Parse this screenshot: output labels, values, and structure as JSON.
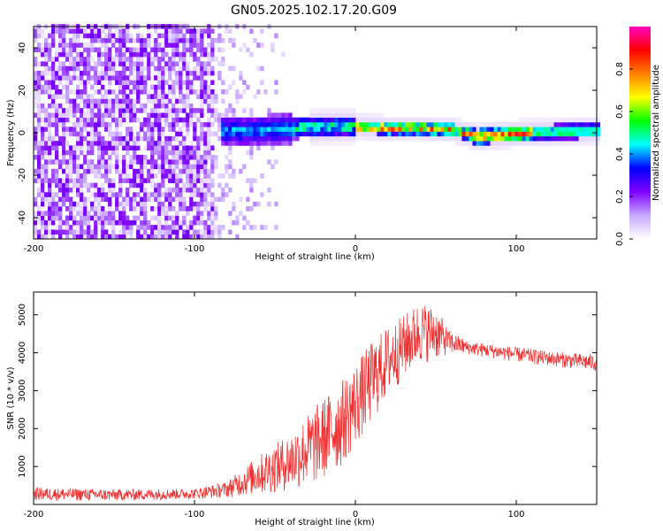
{
  "title": "GN05.2025.102.17.20.G09",
  "chart_data": [
    {
      "type": "heatmap",
      "xlabel": "Height of straight line (km)",
      "ylabel": "Frequency (Hz)",
      "xlim": [
        -200,
        150
      ],
      "ylim": [
        -50,
        50
      ],
      "x_ticks": [
        -200,
        -100,
        0,
        100
      ],
      "y_ticks": [
        -40,
        -20,
        0,
        20,
        40
      ],
      "colorbar": {
        "label": "Normalized spectral amplitude",
        "range": [
          0,
          1
        ],
        "ticks": [
          "0.0",
          "0.2",
          "0.4",
          "0.6",
          "0.8"
        ],
        "colormap": [
          "#ffffff",
          "#c8a8ff",
          "#8000ff",
          "#0000ff",
          "#00ffff",
          "#00ff00",
          "#ffff00",
          "#ff8000",
          "#ff0000",
          "#ff00c0"
        ]
      },
      "description_of_ridge": {
        "noise_region_x": [
          -200,
          -45
        ],
        "signal_start_x": -85,
        "ridge_frequency_hz": [
          [
            -85,
            0
          ],
          [
            -60,
            0
          ],
          [
            -40,
            1
          ],
          [
            -20,
            2
          ],
          [
            0,
            2
          ],
          [
            20,
            1
          ],
          [
            40,
            1
          ],
          [
            60,
            0
          ],
          [
            75,
            -3
          ],
          [
            90,
            -2
          ],
          [
            110,
            -1
          ],
          [
            150,
            0
          ]
        ]
      }
    },
    {
      "type": "line",
      "xlabel": "Height of straight line (km)",
      "ylabel": "SNR (10 * v/v)",
      "xlim": [
        -200,
        150
      ],
      "ylim": [
        0,
        5600
      ],
      "x_ticks": [
        -200,
        -100,
        0,
        100
      ],
      "y_ticks": [
        1000,
        2000,
        3000,
        4000,
        5000
      ],
      "series": [
        {
          "color": "#f03030",
          "envelope_x": [
            -200,
            -150,
            -100,
            -80,
            -60,
            -40,
            -25,
            -10,
            0,
            10,
            20,
            30,
            40,
            50,
            58,
            70,
            100,
            130,
            150
          ],
          "envelope_low": [
            100,
            90,
            140,
            180,
            250,
            350,
            500,
            900,
            1500,
            2100,
            2800,
            3300,
            3700,
            3800,
            3950,
            3950,
            3750,
            3600,
            3500
          ],
          "envelope_high": [
            450,
            400,
            420,
            600,
            1300,
            1900,
            2600,
            3200,
            3700,
            4300,
            4700,
            5000,
            5350,
            5200,
            4600,
            4300,
            4150,
            4000,
            3950
          ]
        }
      ]
    }
  ]
}
